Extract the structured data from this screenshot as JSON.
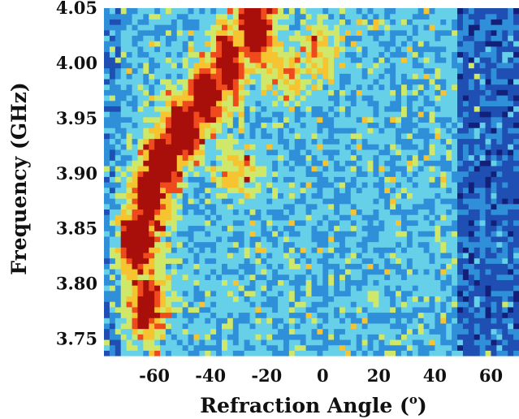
{
  "chart_data": {
    "type": "heatmap",
    "title": "",
    "xlabel": "Refraction Angle (",
    "xlabel_superscript": "o",
    "xlabel_suffix": ")",
    "ylabel": "Frequency (GHz)",
    "xlim": [
      -78,
      70
    ],
    "ylim": [
      3.735,
      4.05
    ],
    "x_ticks": [
      -60,
      -40,
      -20,
      0,
      20,
      40,
      60
    ],
    "x_tick_labels": [
      "-60",
      "-40",
      "-20",
      "0",
      "20",
      "40",
      "60"
    ],
    "y_ticks": [
      3.75,
      3.8,
      3.85,
      3.9,
      3.95,
      4.0,
      4.05
    ],
    "y_tick_labels": [
      "3.75",
      "3.80",
      "3.85",
      "3.90",
      "3.95",
      "4.00",
      "4.05"
    ],
    "colormap": [
      "#12207a",
      "#1f4fb3",
      "#2f8fd8",
      "#66d0e8",
      "#cfe86a",
      "#f6c431",
      "#ef4a1d",
      "#a80f0a"
    ],
    "intensity_ridge": {
      "description_points": [
        {
          "angle": -63,
          "freq": 3.78,
          "intensity": 0.75
        },
        {
          "angle": -66,
          "freq": 3.84,
          "intensity": 1.0
        },
        {
          "angle": -62,
          "freq": 3.88,
          "intensity": 0.9
        },
        {
          "angle": -57,
          "freq": 3.91,
          "intensity": 1.0
        },
        {
          "angle": -50,
          "freq": 3.94,
          "intensity": 0.95
        },
        {
          "angle": -42,
          "freq": 3.97,
          "intensity": 0.9
        },
        {
          "angle": -34,
          "freq": 4.0,
          "intensity": 0.85
        },
        {
          "angle": -24,
          "freq": 4.03,
          "intensity": 0.85
        }
      ],
      "secondary_band": [
        {
          "angle": -30,
          "freq": 3.9,
          "intensity": 0.6
        },
        {
          "angle": -12,
          "freq": 3.99,
          "intensity": 0.65
        },
        {
          "angle": -2,
          "freq": 4.01,
          "intensity": 0.7
        }
      ]
    }
  }
}
